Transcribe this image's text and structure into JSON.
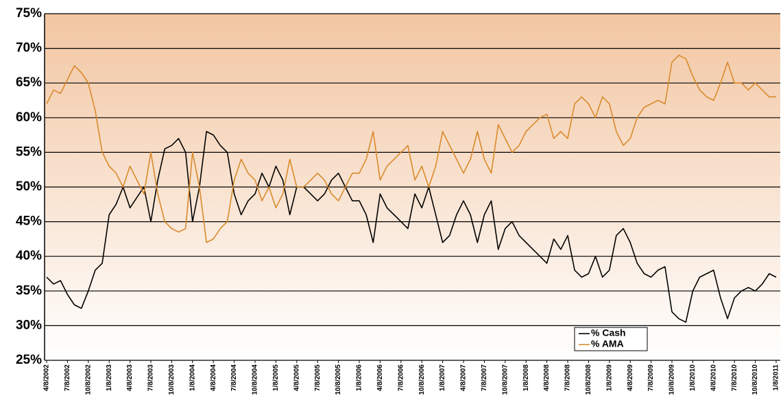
{
  "chart_data": {
    "type": "line",
    "categories": [
      "4/8/2002",
      null,
      null,
      "7/8/2002",
      null,
      null,
      "10/8/2002",
      null,
      null,
      "1/8/2003",
      null,
      null,
      "4/8/2003",
      null,
      null,
      "7/8/2003",
      null,
      null,
      "10/8/2003",
      null,
      null,
      "1/8/2004",
      null,
      null,
      "4/8/2004",
      null,
      null,
      "7/8/2004",
      null,
      null,
      "10/8/2004",
      null,
      null,
      "1/8/2005",
      null,
      null,
      "4/8/2005",
      null,
      null,
      "7/8/2005",
      null,
      null,
      "10/8/2005",
      null,
      null,
      "1/8/2006",
      null,
      null,
      "4/8/2006",
      null,
      null,
      "7/8/2006",
      null,
      null,
      "10/8/2006",
      null,
      null,
      "1/8/2007",
      null,
      null,
      "4/8/2007",
      null,
      null,
      "7/8/2007",
      null,
      null,
      "10/8/2007",
      null,
      null,
      "1/8/2008",
      null,
      null,
      "4/8/2008",
      null,
      null,
      "7/8/2008",
      null,
      null,
      "10/8/2008",
      null,
      null,
      "1/8/2009",
      null,
      null,
      "4/8/2009",
      null,
      null,
      "7/8/2009",
      null,
      null,
      "10/8/2009",
      null,
      null,
      "1/8/2010",
      null,
      null,
      "4/8/2010",
      null,
      null,
      "7/8/2010",
      null,
      null,
      "10/8/2010",
      null,
      null,
      "1/8/2011"
    ],
    "series": [
      {
        "name": "% Cash",
        "color": "#000000",
        "values": [
          37,
          36,
          36.5,
          34.5,
          33,
          32.5,
          35,
          38,
          39,
          46,
          47.5,
          50,
          47,
          48.5,
          50,
          45,
          51,
          55.5,
          56,
          57,
          55,
          45,
          50,
          58,
          57.5,
          56,
          55,
          49,
          46,
          48,
          49,
          52,
          50,
          53,
          51,
          46,
          50,
          50,
          49,
          48,
          49,
          51,
          52,
          50,
          48,
          48,
          46,
          42,
          49,
          47,
          46,
          45,
          44,
          49,
          47,
          50,
          46,
          42,
          43,
          46,
          48,
          46,
          42,
          46,
          48,
          41,
          44,
          45,
          43,
          42,
          41,
          40,
          39,
          42.5,
          41,
          43,
          38,
          37,
          37.5,
          40,
          37,
          38,
          43,
          44,
          42,
          39,
          37.5,
          37,
          38,
          38.5,
          32,
          31,
          30.5,
          35,
          37,
          37.5,
          38,
          34,
          31,
          34,
          35,
          35.5,
          35,
          36,
          37.5,
          37
        ]
      },
      {
        "name": "% AMA",
        "color": "#d98a2b",
        "values": [
          62,
          64,
          63.5,
          65.5,
          67.5,
          66.5,
          65,
          61,
          55,
          53,
          52,
          50,
          53,
          51,
          49,
          55,
          49,
          45,
          44,
          43.5,
          44,
          55,
          50,
          42,
          42.5,
          44,
          45,
          51,
          54,
          52,
          51,
          48,
          50,
          47,
          49,
          54,
          50,
          50,
          51,
          52,
          51,
          49,
          48,
          50,
          52,
          52,
          54,
          58,
          51,
          53,
          54,
          55,
          56,
          51,
          53,
          50,
          53,
          58,
          56,
          54,
          52,
          54,
          58,
          54,
          52,
          59,
          57,
          55,
          56,
          58,
          59,
          60,
          60.5,
          57,
          58,
          57,
          62,
          63,
          62,
          60,
          63,
          62,
          58,
          56,
          57,
          60,
          61.5,
          62,
          62.5,
          62,
          68,
          69,
          68.5,
          66,
          64,
          63,
          62.5,
          65,
          68,
          65,
          65,
          64,
          65,
          64,
          63,
          63
        ]
      }
    ],
    "ylim": [
      25,
      75
    ],
    "yticks": [
      {
        "value": 25,
        "label": "25%"
      },
      {
        "value": 30,
        "label": "30%"
      },
      {
        "value": 35,
        "label": "35%"
      },
      {
        "value": 40,
        "label": "40%"
      },
      {
        "value": 45,
        "label": "45%"
      },
      {
        "value": 50,
        "label": "50%"
      },
      {
        "value": 55,
        "label": "55%"
      },
      {
        "value": 60,
        "label": "60%"
      },
      {
        "value": 65,
        "label": "65%"
      },
      {
        "value": 70,
        "label": "70%"
      },
      {
        "value": 75,
        "label": "75%"
      }
    ],
    "grid": true,
    "legend": "lower right"
  }
}
